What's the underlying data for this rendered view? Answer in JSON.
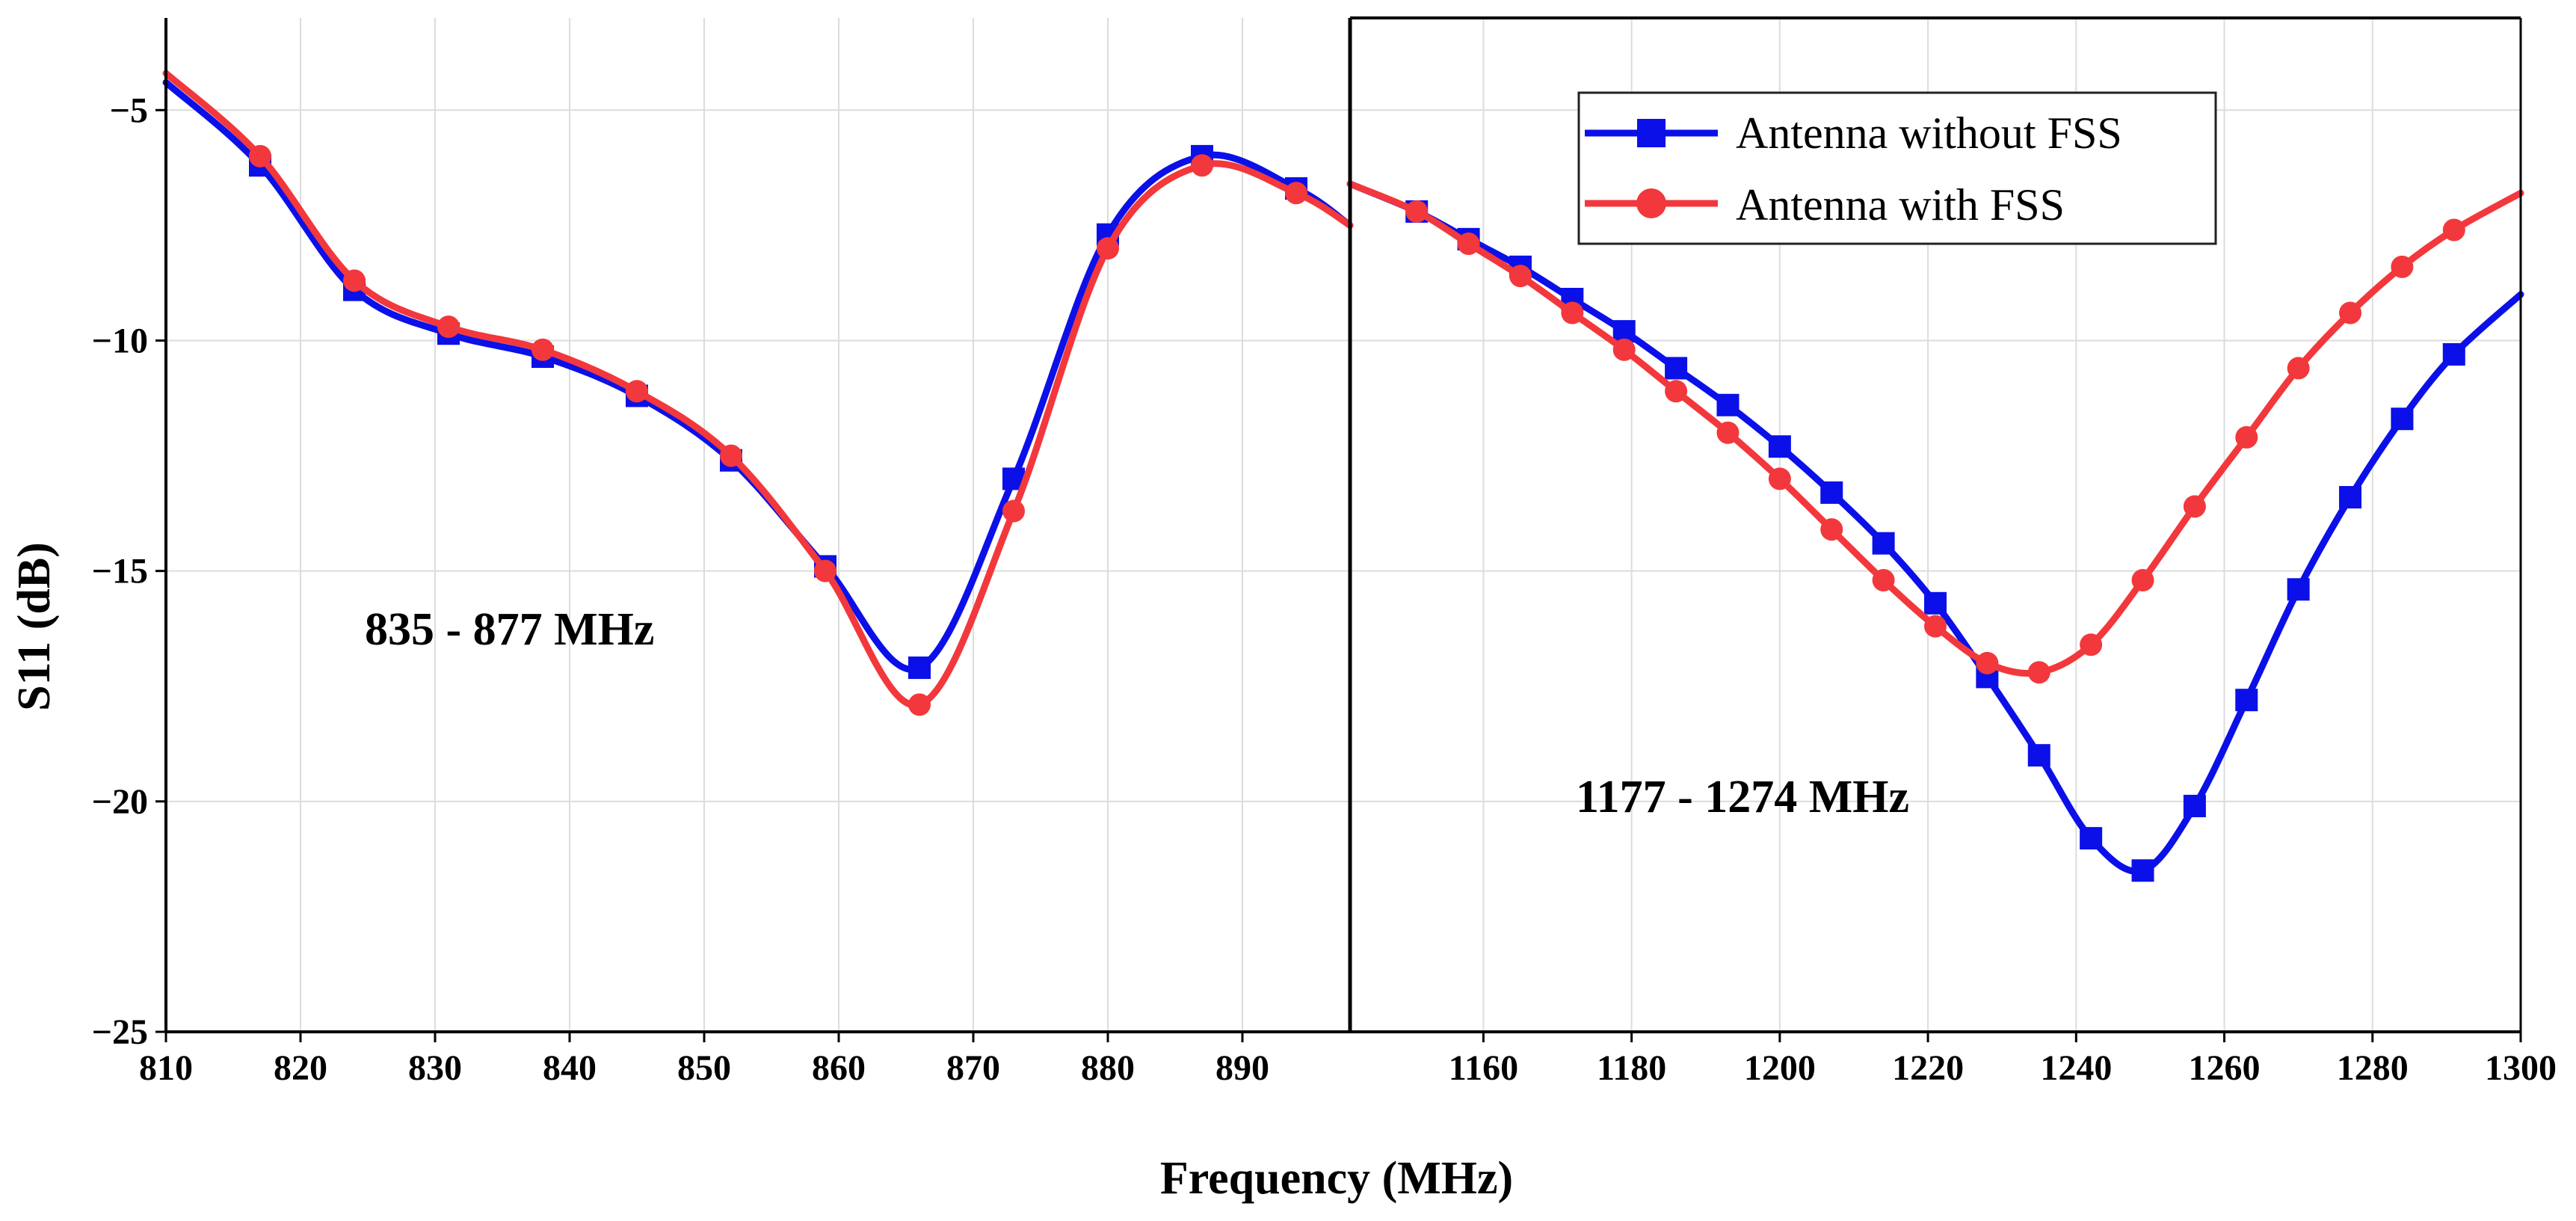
{
  "chart_data": {
    "type": "line",
    "xlabel": "Frequency (MHz)",
    "ylabel": "S11 (dB)",
    "ylim": [
      -25,
      -3
    ],
    "yticks": [
      -5,
      -10,
      -15,
      -20,
      -25
    ],
    "yticks_labels": [
      "−5",
      "−10",
      "−15",
      "−20",
      "−25"
    ],
    "grid": true,
    "legend_position": "top-right",
    "series_colors": {
      "without": "#0b10e8",
      "with": "#f2383c"
    },
    "panels": [
      {
        "name": "left",
        "xlim": [
          810,
          898
        ],
        "xticks": [
          810,
          820,
          830,
          840,
          850,
          860,
          870,
          880,
          890
        ],
        "annotation": "835 - 877 MHz",
        "series": [
          {
            "name": "Antenna without FSS",
            "marker": "square",
            "points": [
              [
                810,
                -4.4
              ],
              [
                817,
                -6.2
              ],
              [
                824,
                -8.9
              ],
              [
                831,
                -9.85
              ],
              [
                838,
                -10.35
              ],
              [
                845,
                -11.2
              ],
              [
                852,
                -12.6
              ],
              [
                859,
                -14.9
              ],
              [
                866,
                -17.1
              ],
              [
                873,
                -13.0
              ],
              [
                880,
                -7.7
              ],
              [
                887,
                -6.0
              ],
              [
                894,
                -6.7
              ],
              [
                898,
                -7.5
              ]
            ]
          },
          {
            "name": "Antenna with FSS",
            "marker": "circle",
            "points": [
              [
                810,
                -4.2
              ],
              [
                817,
                -6.0
              ],
              [
                824,
                -8.7
              ],
              [
                831,
                -9.7
              ],
              [
                838,
                -10.2
              ],
              [
                845,
                -11.1
              ],
              [
                852,
                -12.5
              ],
              [
                859,
                -15.0
              ],
              [
                866,
                -17.9
              ],
              [
                873,
                -13.7
              ],
              [
                880,
                -8.0
              ],
              [
                887,
                -6.2
              ],
              [
                894,
                -6.8
              ],
              [
                898,
                -7.5
              ]
            ]
          }
        ]
      },
      {
        "name": "right",
        "xlim": [
          1142,
          1300
        ],
        "xticks": [
          1160,
          1180,
          1200,
          1220,
          1240,
          1260,
          1280,
          1300
        ],
        "annotation": "1177 - 1274 MHz",
        "series": [
          {
            "name": "Antenna without FSS",
            "marker": "square",
            "points": [
              [
                1142,
                -6.6
              ],
              [
                1151,
                -7.2
              ],
              [
                1158,
                -7.8
              ],
              [
                1165,
                -8.4
              ],
              [
                1172,
                -9.1
              ],
              [
                1179,
                -9.8
              ],
              [
                1186,
                -10.6
              ],
              [
                1193,
                -11.4
              ],
              [
                1200,
                -12.3
              ],
              [
                1207,
                -13.3
              ],
              [
                1214,
                -14.4
              ],
              [
                1221,
                -15.7
              ],
              [
                1228,
                -17.3
              ],
              [
                1235,
                -19.0
              ],
              [
                1242,
                -20.8
              ],
              [
                1249,
                -21.5
              ],
              [
                1256,
                -20.1
              ],
              [
                1263,
                -17.8
              ],
              [
                1270,
                -15.4
              ],
              [
                1277,
                -13.4
              ],
              [
                1284,
                -11.7
              ],
              [
                1291,
                -10.3
              ],
              [
                1300,
                -9.0
              ]
            ]
          },
          {
            "name": "Antenna with FSS",
            "marker": "circle",
            "points": [
              [
                1142,
                -6.6
              ],
              [
                1151,
                -7.2
              ],
              [
                1158,
                -7.9
              ],
              [
                1165,
                -8.6
              ],
              [
                1172,
                -9.4
              ],
              [
                1179,
                -10.2
              ],
              [
                1186,
                -11.1
              ],
              [
                1193,
                -12.0
              ],
              [
                1200,
                -13.0
              ],
              [
                1207,
                -14.1
              ],
              [
                1214,
                -15.2
              ],
              [
                1221,
                -16.2
              ],
              [
                1228,
                -17.0
              ],
              [
                1235,
                -17.2
              ],
              [
                1242,
                -16.6
              ],
              [
                1249,
                -15.2
              ],
              [
                1256,
                -13.6
              ],
              [
                1263,
                -12.1
              ],
              [
                1270,
                -10.6
              ],
              [
                1277,
                -9.4
              ],
              [
                1284,
                -8.4
              ],
              [
                1291,
                -7.6
              ],
              [
                1300,
                -6.8
              ]
            ]
          }
        ]
      }
    ],
    "legend": [
      {
        "label": "Antenna without FSS",
        "series_key": "without",
        "marker": "square"
      },
      {
        "label": "Antenna with FSS",
        "series_key": "with",
        "marker": "circle"
      }
    ]
  }
}
